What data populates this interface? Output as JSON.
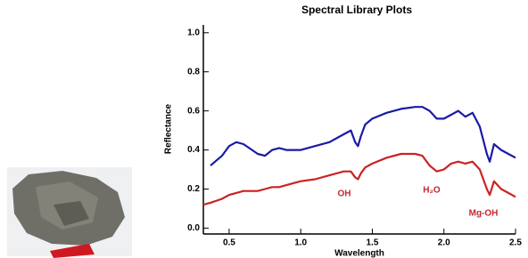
{
  "chart_data": {
    "type": "line",
    "title": "Spectral Library Plots",
    "x_label": "Wavelength",
    "y_label": "Reflectance",
    "x": [
      0.32,
      0.37,
      0.45,
      0.5,
      0.55,
      0.6,
      0.7,
      0.75,
      0.8,
      0.85,
      0.9,
      1.0,
      1.1,
      1.2,
      1.3,
      1.35,
      1.38,
      1.4,
      1.42,
      1.45,
      1.5,
      1.6,
      1.7,
      1.8,
      1.85,
      1.9,
      1.95,
      2.0,
      2.05,
      2.1,
      2.15,
      2.2,
      2.25,
      2.3,
      2.32,
      2.35,
      2.4,
      2.45,
      2.5
    ],
    "series": [
      {
        "color": "#1a1aa8",
        "values": [
          null,
          0.32,
          0.37,
          0.42,
          0.44,
          0.43,
          0.38,
          0.37,
          0.4,
          0.41,
          0.4,
          0.4,
          0.42,
          0.44,
          0.48,
          0.5,
          0.44,
          0.42,
          0.47,
          0.53,
          0.56,
          0.59,
          0.61,
          0.62,
          0.62,
          0.6,
          0.56,
          0.56,
          0.58,
          0.6,
          0.57,
          0.59,
          0.52,
          0.38,
          0.34,
          0.43,
          0.4,
          0.38,
          0.36
        ]
      },
      {
        "color": "#cc2222",
        "values": [
          0.12,
          0.13,
          0.15,
          0.17,
          0.18,
          0.19,
          0.19,
          0.2,
          0.21,
          0.21,
          0.22,
          0.24,
          0.25,
          0.27,
          0.29,
          0.29,
          0.26,
          0.25,
          0.28,
          0.31,
          0.33,
          0.36,
          0.38,
          0.38,
          0.37,
          0.32,
          0.29,
          0.3,
          0.33,
          0.34,
          0.33,
          0.34,
          0.3,
          0.2,
          0.17,
          0.24,
          0.2,
          0.18,
          0.16
        ]
      }
    ],
    "annotations": [
      "OH",
      "H₂O",
      "Mg-OH"
    ],
    "xlim": [
      0.32,
      2.5
    ],
    "ylim": [
      -0.03,
      1.04
    ],
    "xticks": [
      0.5,
      {
        "value": 1,
        "label": "1.0"
      },
      1.5,
      {
        "value": 2,
        "label": "2.0"
      },
      2.5
    ],
    "yticks": [
      {
        "value": 0,
        "label": "0.0"
      },
      0.2,
      0.4,
      0.6,
      0.8,
      {
        "value": 1,
        "label": "1.0"
      }
    ]
  }
}
